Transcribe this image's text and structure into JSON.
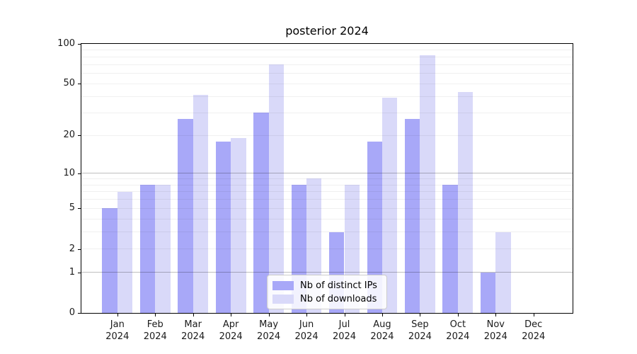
{
  "title": "posterior 2024",
  "chart_data": {
    "type": "bar",
    "title": "posterior 2024",
    "categories": [
      "Jan",
      "Feb",
      "Mar",
      "Apr",
      "May",
      "Jun",
      "Jul",
      "Aug",
      "Sep",
      "Oct",
      "Nov",
      "Dec"
    ],
    "year_label": "2024",
    "series": [
      {
        "name": "Nb of distinct IPs",
        "color": "#a8a8f8",
        "values": [
          5,
          8,
          27,
          18,
          30,
          8,
          3,
          18,
          27,
          8,
          1,
          0
        ]
      },
      {
        "name": "Nb of downloads",
        "color": "#d9d9f9",
        "values": [
          7,
          8,
          41,
          19,
          70,
          9,
          8,
          39,
          82,
          43,
          3,
          0
        ]
      }
    ],
    "xlabel": "",
    "ylabel": "",
    "yscale": "log1p",
    "ylim": [
      0,
      100
    ],
    "ytick_values": [
      0,
      1,
      2,
      5,
      10,
      20,
      50,
      100
    ],
    "major_gridlines": [
      1,
      10
    ],
    "minor_gridlines": [
      2,
      3,
      4,
      5,
      6,
      7,
      8,
      9,
      20,
      30,
      40,
      50,
      60,
      70,
      80,
      90
    ],
    "grid": true,
    "legend": {
      "position": "lower center",
      "entries": [
        "Nb of distinct IPs",
        "Nb of downloads"
      ]
    }
  }
}
